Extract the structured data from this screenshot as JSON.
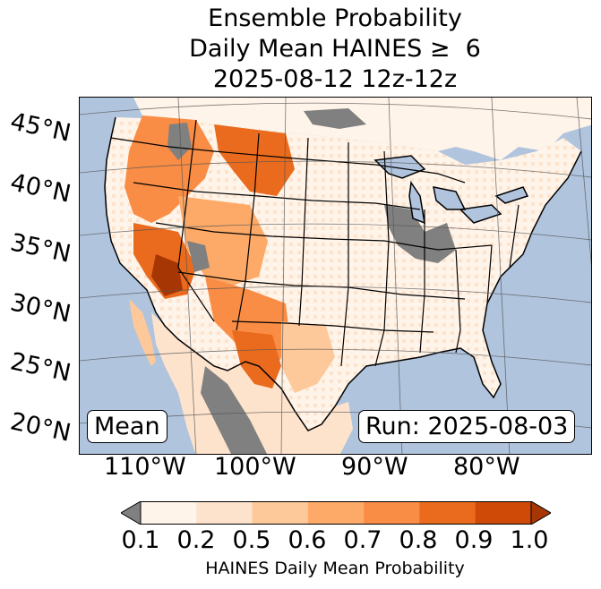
{
  "title": {
    "line1": "Ensemble Probability",
    "line2": "Daily Mean HAINES ≥  6",
    "line3": "2025-08-12 12z-12z"
  },
  "map": {
    "type": "probability-map",
    "region": "Continental United States",
    "ocean_color": "#b0c4de",
    "missing_color": "#808080",
    "latitude_labels": [
      "45°N",
      "40°N",
      "35°N",
      "30°N",
      "25°N",
      "20°N"
    ],
    "longitude_labels": [
      "110°W",
      "100°W",
      "90°W",
      "80°W"
    ]
  },
  "inset": {
    "left_label": "Mean",
    "right_label": "Run: 2025-08-03"
  },
  "colorbar": {
    "ticks": [
      "0.1",
      "0.2",
      "0.5",
      "0.6",
      "0.7",
      "0.8",
      "0.9",
      "1.0"
    ],
    "colors": [
      "#fff4e9",
      "#fee3cc",
      "#fdc89a",
      "#fdaa68",
      "#f98d45",
      "#ea6b1d",
      "#cf4a07",
      "#a63604"
    ],
    "under_color": "#808080",
    "label": "HAINES Daily Mean Probability"
  }
}
